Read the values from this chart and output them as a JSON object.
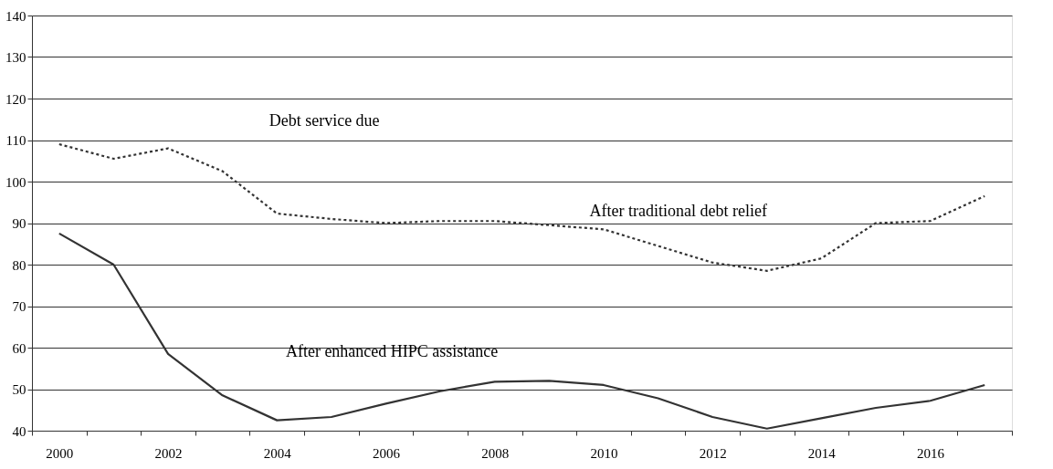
{
  "chart_data": {
    "type": "line",
    "categories": [
      "2000",
      null,
      "2002",
      null,
      "2004",
      null,
      "2006",
      null,
      "2008",
      null,
      "2010",
      null,
      "2012",
      null,
      "2014",
      null,
      "2016",
      null
    ],
    "series": [
      {
        "color": "#333333",
        "line_style": "dotted",
        "values": [
          109,
          105.5,
          108,
          102.5,
          92.3,
          91,
          90,
          90.5,
          90.5,
          89.5,
          88.5,
          84.5,
          80.5,
          78.5,
          81.5,
          90,
          90.5,
          96.5
        ]
      },
      {
        "color": "#333333",
        "line_style": "solid",
        "values": [
          87.5,
          80,
          58.5,
          48.5,
          42.5,
          43.3,
          46.5,
          49.5,
          51.8,
          52,
          51,
          47.8,
          43.3,
          40.5,
          43,
          45.5,
          47.2,
          51
        ]
      }
    ],
    "ylim": [
      40,
      140
    ],
    "yticks": [
      40,
      50,
      60,
      70,
      80,
      90,
      100,
      110,
      120,
      130,
      140
    ],
    "grid": "y",
    "marker": "none",
    "annotations": [
      "Debt service due",
      "After traditional debt relief",
      "After enhanced HIPC assistance"
    ]
  }
}
